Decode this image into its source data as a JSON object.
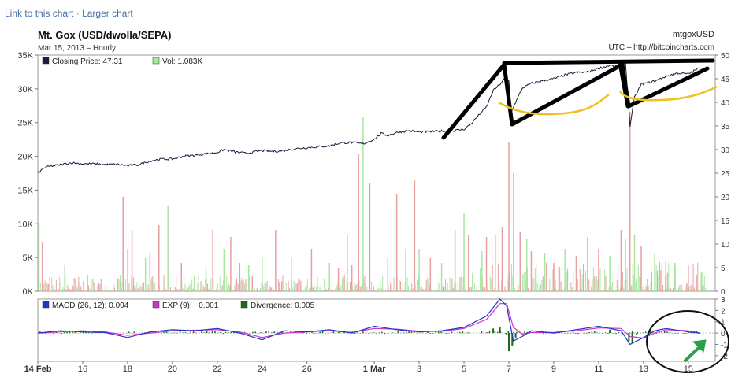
{
  "links": {
    "link_to_chart": "Link to this chart",
    "separator": "·",
    "larger_chart": "Larger chart"
  },
  "header": {
    "title": "Mt. Gox (USD/dwolla/SEPA)",
    "subtitle": "Mar 15, 2013 – Hourly",
    "symbol": "mtgoxUSD",
    "source": "UTC – http://bitcoincharts.com"
  },
  "colors": {
    "price_line": "#1a1a3a",
    "vol_up": "#a8e6a0",
    "vol_down": "#e8a0a0",
    "macd": "#2233cc",
    "exp": "#cc33cc",
    "divergence": "#1a6a1a",
    "annotation_black": "#000000",
    "annotation_yellow": "#f0c020",
    "annotation_arrow": "#2aa04a"
  },
  "chart_data": [
    {
      "type": "line",
      "legend": [
        {
          "label": "Closing Price: 47.31",
          "swatch": "price_line"
        },
        {
          "label": "Vol: 1.083K",
          "swatch": "vol_up"
        }
      ],
      "left_axis": {
        "ticks": [
          "0K",
          "5K",
          "10K",
          "15K",
          "20K",
          "25K",
          "30K",
          "35K"
        ],
        "ylim": [
          0,
          35000
        ]
      },
      "right_axis": {
        "ticks": [
          "0",
          "5",
          "10",
          "15",
          "20",
          "25",
          "30",
          "35",
          "40",
          "45",
          "50"
        ],
        "ylim": [
          0,
          50
        ]
      },
      "x_axis": {
        "ticks": [
          {
            "label": "14 Feb",
            "day": 0,
            "bold": true
          },
          {
            "label": "16",
            "day": 2
          },
          {
            "label": "18",
            "day": 4
          },
          {
            "label": "20",
            "day": 6
          },
          {
            "label": "22",
            "day": 8
          },
          {
            "label": "24",
            "day": 10
          },
          {
            "label": "26",
            "day": 12
          },
          {
            "label": "1 Mar",
            "day": 15,
            "bold": true
          },
          {
            "label": "3",
            "day": 17
          },
          {
            "label": "5",
            "day": 19
          },
          {
            "label": "7",
            "day": 21
          },
          {
            "label": "9",
            "day": 23
          },
          {
            "label": "11",
            "day": 25
          },
          {
            "label": "13",
            "day": 27
          },
          {
            "label": "15",
            "day": 29
          }
        ],
        "xlim": [
          0,
          30.2
        ]
      },
      "price_series": {
        "name": "Closing Price",
        "points": [
          [
            0,
            25.0
          ],
          [
            0.3,
            26.2
          ],
          [
            0.6,
            26.5
          ],
          [
            1.0,
            26.8
          ],
          [
            1.5,
            27.2
          ],
          [
            2.0,
            27.0
          ],
          [
            2.5,
            27.0
          ],
          [
            3.0,
            26.8
          ],
          [
            3.5,
            26.9
          ],
          [
            4.0,
            26.6
          ],
          [
            4.5,
            26.8
          ],
          [
            5.0,
            27.6
          ],
          [
            5.5,
            28.0
          ],
          [
            6.0,
            28.0
          ],
          [
            6.5,
            28.6
          ],
          [
            7.0,
            28.8
          ],
          [
            7.5,
            29.1
          ],
          [
            8.0,
            29.4
          ],
          [
            8.3,
            30.0
          ],
          [
            8.8,
            29.5
          ],
          [
            9.3,
            29.2
          ],
          [
            10.0,
            29.8
          ],
          [
            10.5,
            29.6
          ],
          [
            11.0,
            29.8
          ],
          [
            11.5,
            30.2
          ],
          [
            12.0,
            30.4
          ],
          [
            12.5,
            30.6
          ],
          [
            13.0,
            30.8
          ],
          [
            13.5,
            31.4
          ],
          [
            14.0,
            31.5
          ],
          [
            14.5,
            31.2
          ],
          [
            15.0,
            32.2
          ],
          [
            15.3,
            33.4
          ],
          [
            15.6,
            33.0
          ],
          [
            16.0,
            33.6
          ],
          [
            16.5,
            34.0
          ],
          [
            17.0,
            33.7
          ],
          [
            17.5,
            33.8
          ],
          [
            18.0,
            33.9
          ],
          [
            18.5,
            34.0
          ],
          [
            19.0,
            34.3
          ],
          [
            19.3,
            35.4
          ],
          [
            19.6,
            37.0
          ],
          [
            20.0,
            39.0
          ],
          [
            20.3,
            42.5
          ],
          [
            20.6,
            43.8
          ],
          [
            20.8,
            45.0
          ],
          [
            21.0,
            44.5
          ],
          [
            21.1,
            38.0
          ],
          [
            21.3,
            40.0
          ],
          [
            21.6,
            43.0
          ],
          [
            22.0,
            44.0
          ],
          [
            22.5,
            44.6
          ],
          [
            23.0,
            45.0
          ],
          [
            23.5,
            45.8
          ],
          [
            24.0,
            46.3
          ],
          [
            24.5,
            46.4
          ],
          [
            25.0,
            47.2
          ],
          [
            25.5,
            47.8
          ],
          [
            26.0,
            47.6
          ],
          [
            26.2,
            48.3
          ],
          [
            26.4,
            35.0
          ],
          [
            26.6,
            41.0
          ],
          [
            26.9,
            43.8
          ],
          [
            27.5,
            44.5
          ],
          [
            28.0,
            45.5
          ],
          [
            28.5,
            46.2
          ],
          [
            29.0,
            46.0
          ],
          [
            29.5,
            47.3
          ]
        ]
      },
      "volume_series": {
        "name": "Vol",
        "spikes": [
          [
            0.05,
            14.5,
            "up"
          ],
          [
            0.2,
            10.5,
            "down"
          ],
          [
            1.2,
            5.5,
            "up"
          ],
          [
            3.8,
            20.0,
            "down"
          ],
          [
            4.0,
            9.0,
            "up"
          ],
          [
            4.2,
            13.0,
            "down"
          ],
          [
            4.8,
            7.0,
            "up"
          ],
          [
            5.0,
            8.0,
            "down"
          ],
          [
            5.4,
            14.0,
            "down"
          ],
          [
            5.8,
            18.0,
            "up"
          ],
          [
            6.4,
            6.0,
            "down"
          ],
          [
            7.5,
            5.0,
            "up"
          ],
          [
            7.8,
            13.0,
            "down"
          ],
          [
            8.3,
            9.0,
            "up"
          ],
          [
            8.6,
            11.5,
            "down"
          ],
          [
            9.0,
            6.0,
            "down"
          ],
          [
            9.4,
            5.5,
            "up"
          ],
          [
            10.0,
            7.0,
            "up"
          ],
          [
            10.6,
            13.0,
            "down"
          ],
          [
            11.3,
            7.0,
            "up"
          ],
          [
            12.2,
            9.0,
            "down"
          ],
          [
            13.0,
            6.0,
            "up"
          ],
          [
            13.4,
            5.0,
            "down"
          ],
          [
            13.8,
            12.0,
            "up"
          ],
          [
            14.0,
            5.5,
            "down"
          ],
          [
            14.3,
            29.0,
            "down"
          ],
          [
            14.5,
            37.0,
            "up"
          ],
          [
            14.8,
            23.0,
            "down"
          ],
          [
            15.6,
            7.0,
            "up"
          ],
          [
            16.0,
            20.5,
            "down"
          ],
          [
            16.4,
            9.0,
            "up"
          ],
          [
            16.8,
            23.5,
            "down"
          ],
          [
            17.0,
            9.0,
            "up"
          ],
          [
            17.5,
            7.0,
            "down"
          ],
          [
            18.0,
            6.0,
            "up"
          ],
          [
            18.6,
            13.0,
            "down"
          ],
          [
            19.0,
            16.5,
            "up"
          ],
          [
            19.2,
            12.0,
            "down"
          ],
          [
            19.8,
            8.5,
            "up"
          ],
          [
            20.0,
            11.5,
            "down"
          ],
          [
            20.4,
            12.0,
            "up"
          ],
          [
            20.7,
            13.5,
            "down"
          ],
          [
            21.0,
            31.5,
            "down"
          ],
          [
            21.2,
            25.0,
            "up"
          ],
          [
            21.5,
            12.5,
            "down"
          ],
          [
            21.8,
            11.0,
            "up"
          ],
          [
            22.0,
            8.5,
            "down"
          ],
          [
            22.6,
            8.0,
            "up"
          ],
          [
            23.0,
            6.0,
            "down"
          ],
          [
            23.5,
            9.0,
            "up"
          ],
          [
            24.0,
            7.5,
            "down"
          ],
          [
            24.5,
            11.5,
            "up"
          ],
          [
            25.0,
            9.0,
            "down"
          ],
          [
            25.5,
            7.5,
            "up"
          ],
          [
            26.0,
            13.0,
            "down"
          ],
          [
            26.2,
            11.0,
            "up"
          ],
          [
            26.4,
            38.0,
            "down"
          ],
          [
            26.6,
            12.0,
            "up"
          ],
          [
            26.9,
            9.5,
            "down"
          ],
          [
            27.5,
            8.0,
            "up"
          ],
          [
            28.0,
            6.5,
            "down"
          ],
          [
            28.4,
            6.0,
            "up"
          ],
          [
            29.0,
            5.5,
            "down"
          ],
          [
            29.6,
            4.0,
            "up"
          ]
        ],
        "noise_scale_right_units": 3.5
      }
    },
    {
      "type": "line",
      "name": "MACD",
      "legend": [
        {
          "label": "MACD (26, 12): 0.004",
          "swatch": "macd"
        },
        {
          "label": "EXP (9): −0.001",
          "swatch": "exp"
        },
        {
          "label": "Divergence: 0.005",
          "swatch": "divergence"
        }
      ],
      "right_axis": {
        "ticks": [
          "3",
          "2",
          "1",
          "0",
          "-1",
          "-2"
        ],
        "ylim": [
          -2.5,
          3
        ]
      },
      "macd_series": {
        "name": "MACD (26, 12)",
        "points": [
          [
            0,
            0
          ],
          [
            1,
            0.2
          ],
          [
            2,
            0.1
          ],
          [
            3,
            0.05
          ],
          [
            4,
            -0.4
          ],
          [
            5,
            0.1
          ],
          [
            6,
            0.3
          ],
          [
            7,
            0.2
          ],
          [
            8,
            0.4
          ],
          [
            9,
            0.0
          ],
          [
            10,
            -0.6
          ],
          [
            11,
            0.2
          ],
          [
            12,
            0.1
          ],
          [
            13,
            0.3
          ],
          [
            14,
            0.0
          ],
          [
            15,
            0.6
          ],
          [
            16,
            0.3
          ],
          [
            17,
            0.1
          ],
          [
            18,
            0.2
          ],
          [
            19,
            0.5
          ],
          [
            20,
            1.5
          ],
          [
            20.6,
            3.0
          ],
          [
            20.9,
            2.4
          ],
          [
            21.2,
            -0.7
          ],
          [
            21.6,
            -0.3
          ],
          [
            22,
            0.2
          ],
          [
            23,
            0.0
          ],
          [
            24,
            0.3
          ],
          [
            25,
            0.6
          ],
          [
            26,
            0.2
          ],
          [
            26.4,
            -1.0
          ],
          [
            27,
            -0.4
          ],
          [
            27.5,
            0.2
          ],
          [
            28,
            0.4
          ],
          [
            29,
            0.1
          ],
          [
            29.5,
            0.0
          ]
        ]
      },
      "exp_series": {
        "name": "EXP (9)",
        "points": [
          [
            0,
            0
          ],
          [
            1,
            0.1
          ],
          [
            2,
            0.2
          ],
          [
            3,
            0.1
          ],
          [
            4,
            -0.2
          ],
          [
            5,
            0.0
          ],
          [
            6,
            0.2
          ],
          [
            7,
            0.25
          ],
          [
            8,
            0.3
          ],
          [
            9,
            0.1
          ],
          [
            10,
            -0.4
          ],
          [
            11,
            0.0
          ],
          [
            12,
            0.1
          ],
          [
            13,
            0.2
          ],
          [
            14,
            0.05
          ],
          [
            15,
            0.4
          ],
          [
            16,
            0.35
          ],
          [
            17,
            0.15
          ],
          [
            18,
            0.15
          ],
          [
            19,
            0.4
          ],
          [
            20,
            1.2
          ],
          [
            20.6,
            2.6
          ],
          [
            20.9,
            2.6
          ],
          [
            21.2,
            0.5
          ],
          [
            21.6,
            -0.1
          ],
          [
            22,
            0.05
          ],
          [
            23,
            0.05
          ],
          [
            24,
            0.2
          ],
          [
            25,
            0.45
          ],
          [
            26,
            0.4
          ],
          [
            26.4,
            -0.3
          ],
          [
            27,
            -0.45
          ],
          [
            27.5,
            0.0
          ],
          [
            28,
            0.3
          ],
          [
            29,
            0.2
          ],
          [
            29.5,
            0.0
          ]
        ]
      },
      "divergence_series": {
        "name": "Divergence",
        "bars": [
          [
            20.3,
            0.4
          ],
          [
            20.6,
            0.5
          ],
          [
            20.9,
            -0.2
          ],
          [
            21.0,
            -1.6
          ],
          [
            21.15,
            -1.1
          ],
          [
            21.3,
            -0.4
          ],
          [
            25.5,
            0.3
          ],
          [
            26.35,
            -0.7
          ],
          [
            26.5,
            -0.9
          ],
          [
            26.7,
            -0.2
          ],
          [
            27.3,
            0.3
          ]
        ]
      }
    }
  ]
}
